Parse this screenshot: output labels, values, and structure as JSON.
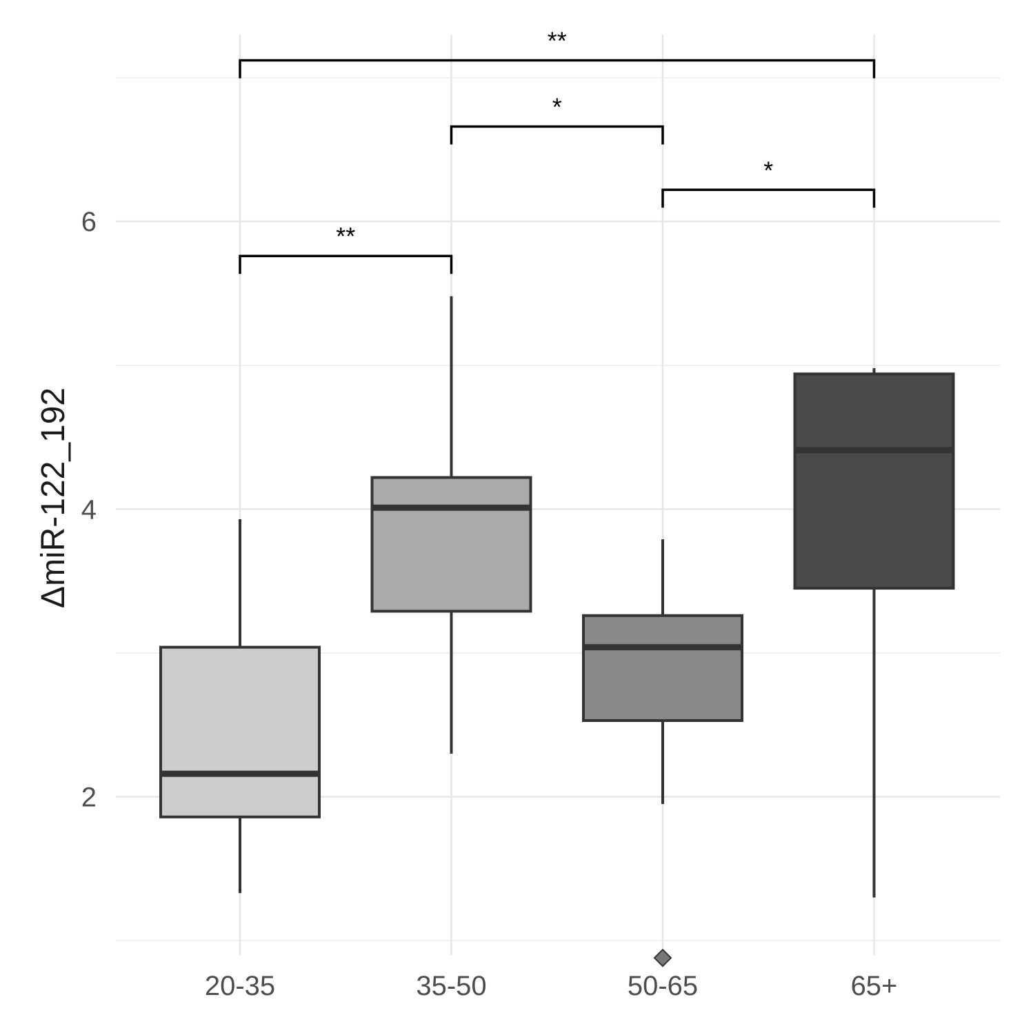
{
  "chart_data": {
    "type": "boxplot",
    "title": "",
    "xlabel": "",
    "ylabel": "ΔmiR-122_192",
    "categories": [
      "20-35",
      "35-50",
      "50-65",
      "65+"
    ],
    "ylim": [
      0.9,
      7.3
    ],
    "yticks": [
      2,
      4,
      6
    ],
    "grid": true,
    "legend": "none",
    "boxes": [
      {
        "category": "20-35",
        "whisker_low": 1.33,
        "q1": 1.86,
        "median": 2.16,
        "q3": 3.04,
        "whisker_high": 3.93,
        "outliers": [],
        "fill": "#cccccc"
      },
      {
        "category": "35-50",
        "whisker_low": 2.3,
        "q1": 3.29,
        "median": 4.01,
        "q3": 4.22,
        "whisker_high": 5.48,
        "outliers": [],
        "fill": "#aaaaaa"
      },
      {
        "category": "50-65",
        "whisker_low": 1.95,
        "q1": 2.53,
        "median": 3.04,
        "q3": 3.26,
        "whisker_high": 3.79,
        "outliers": [
          0.88
        ],
        "fill": "#888888"
      },
      {
        "category": "65+",
        "whisker_low": 1.3,
        "q1": 3.45,
        "median": 4.41,
        "q3": 4.94,
        "whisker_high": 4.98,
        "outliers": [],
        "fill": "#4a4a4a"
      }
    ],
    "annotations": [
      {
        "from": "20-35",
        "to": "65+",
        "y": 7.12,
        "label": "**"
      },
      {
        "from": "35-50",
        "to": "50-65",
        "y": 6.66,
        "label": "*"
      },
      {
        "from": "50-65",
        "to": "65+",
        "y": 6.22,
        "label": "*"
      },
      {
        "from": "20-35",
        "to": "35-50",
        "y": 5.76,
        "label": "**"
      }
    ]
  }
}
